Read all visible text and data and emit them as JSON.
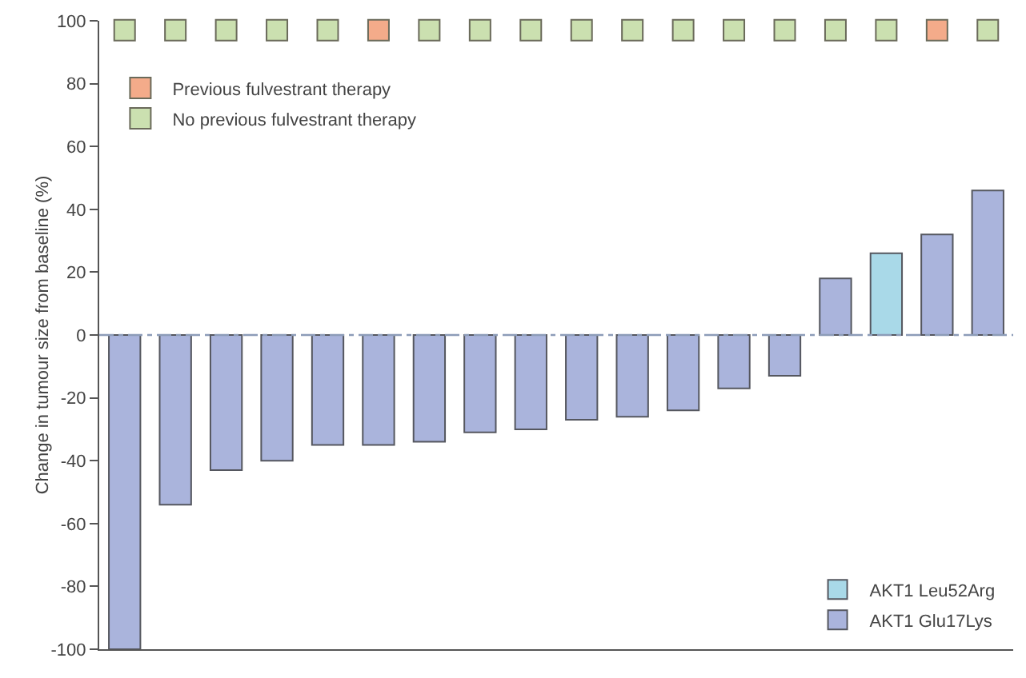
{
  "chart_data": {
    "type": "bar",
    "ylabel": "Change in tumour size from baseline (%)",
    "categories": [
      null,
      null,
      null,
      null,
      null,
      null,
      null,
      null,
      null,
      null,
      null,
      null,
      null,
      null,
      null,
      null,
      null,
      null
    ],
    "series": [
      {
        "name": "AKT1 Leu52Arg",
        "color": "#a9d9e8",
        "values": [
          null,
          null,
          null,
          null,
          null,
          null,
          null,
          null,
          null,
          null,
          null,
          null,
          null,
          null,
          null,
          26,
          null,
          null
        ]
      },
      {
        "name": "AKT1 Glu17Lys",
        "color": "#aab4dc",
        "values": [
          -100,
          -54,
          -43,
          -40,
          -35,
          -35,
          -34,
          -31,
          -30,
          -27,
          -26,
          -24,
          -17,
          -13,
          18,
          null,
          32,
          46
        ]
      },
      {
        "name": "Previous fulvestrant therapy",
        "type": "scatter",
        "color": "#f4ab8a",
        "values": [
          null,
          null,
          null,
          null,
          null,
          97,
          null,
          null,
          null,
          null,
          null,
          null,
          null,
          null,
          null,
          null,
          97,
          null
        ]
      },
      {
        "name": "No previous fulvestrant therapy",
        "type": "scatter",
        "color": "#cbe0b0",
        "values": [
          97,
          97,
          97,
          97,
          97,
          null,
          97,
          97,
          97,
          97,
          97,
          97,
          97,
          97,
          97,
          97,
          null,
          97
        ]
      }
    ],
    "ylim": [
      -100,
      100
    ],
    "yticks": [
      -100,
      -80,
      -60,
      -40,
      -20,
      0,
      20,
      40,
      60,
      80,
      100
    ],
    "ref_lines": [
      {
        "axis": "y",
        "value": 0,
        "color": "#8c9cb8",
        "line_style": "dashed"
      }
    ],
    "marker": "square",
    "legend": "bottom right",
    "tick_labels": "y",
    "grid": false
  }
}
